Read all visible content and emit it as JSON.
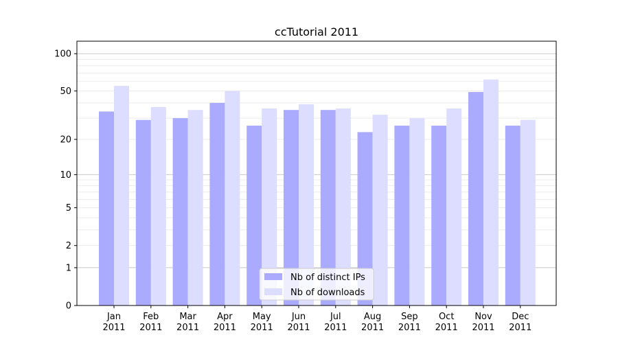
{
  "chart_data": {
    "type": "bar",
    "title": "ccTutorial 2011",
    "xlabel": "",
    "ylabel": "",
    "yscale": "log10(1+y)",
    "ylim": [
      0,
      120
    ],
    "yticks": [
      0,
      1,
      2,
      5,
      10,
      20,
      50,
      100
    ],
    "grid": true,
    "legend_position": "bottom-center",
    "categories": [
      "Jan\n2011",
      "Feb\n2011",
      "Mar\n2011",
      "Apr\n2011",
      "May\n2011",
      "Jun\n2011",
      "Jul\n2011",
      "Aug\n2011",
      "Sep\n2011",
      "Oct\n2011",
      "Nov\n2011",
      "Dec\n2011"
    ],
    "series": [
      {
        "name": "Nb of distinct IPs",
        "color": "#aaaaff",
        "values": [
          34,
          29,
          30,
          40,
          26,
          35,
          35,
          23,
          26,
          26,
          49,
          26
        ]
      },
      {
        "name": "Nb of downloads",
        "color": "#ddddff",
        "values": [
          55,
          37,
          35,
          50,
          36,
          39,
          36,
          32,
          30,
          36,
          62,
          29
        ]
      }
    ]
  }
}
